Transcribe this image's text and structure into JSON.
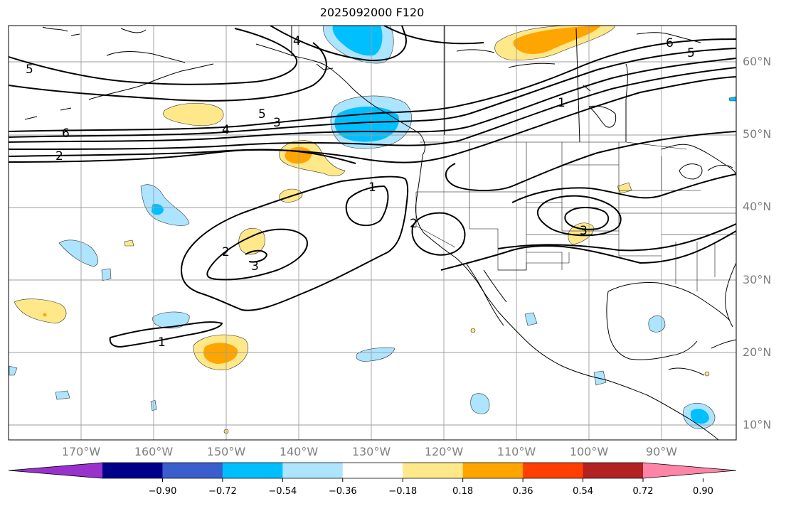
{
  "title": "2025092000 F120",
  "lat_labels": [
    {
      "value": 60,
      "text": "60°N"
    },
    {
      "value": 50,
      "text": "50°N"
    },
    {
      "value": 40,
      "text": "40°N"
    },
    {
      "value": 30,
      "text": "30°N"
    },
    {
      "value": 20,
      "text": "20°N"
    },
    {
      "value": 10,
      "text": "10°N"
    }
  ],
  "lon_labels": [
    {
      "value": -170,
      "text": "170°W"
    },
    {
      "value": -160,
      "text": "160°W"
    },
    {
      "value": -150,
      "text": "150°W"
    },
    {
      "value": -140,
      "text": "140°W"
    },
    {
      "value": -130,
      "text": "130°W"
    },
    {
      "value": -120,
      "text": "120°W"
    },
    {
      "value": -110,
      "text": "110°W"
    },
    {
      "value": -100,
      "text": "100°W"
    },
    {
      "value": -90,
      "text": "90°W"
    }
  ],
  "colorbar": {
    "colors": [
      "#9932cc",
      "#00008b",
      "#3a5fcd",
      "#00bfff",
      "#ade4ff",
      "#ffffff",
      "#ffe88a",
      "#ffa500",
      "#ff3f00",
      "#b22222",
      "#ff85a8"
    ],
    "tick_labels": [
      "−0.90",
      "−0.72",
      "−0.54",
      "−0.36",
      "−0.18",
      "0.18",
      "0.36",
      "0.54",
      "0.72",
      "0.90"
    ]
  },
  "contour_labels": [
    {
      "text": "5"
    },
    {
      "text": "4"
    },
    {
      "text": "6"
    },
    {
      "text": "5"
    },
    {
      "text": "6"
    },
    {
      "text": "2"
    },
    {
      "text": "5"
    },
    {
      "text": "3"
    },
    {
      "text": "4"
    },
    {
      "text": "1"
    },
    {
      "text": "1"
    },
    {
      "text": "2"
    },
    {
      "text": "2"
    },
    {
      "text": "3"
    },
    {
      "text": "3"
    },
    {
      "text": "1"
    }
  ]
}
